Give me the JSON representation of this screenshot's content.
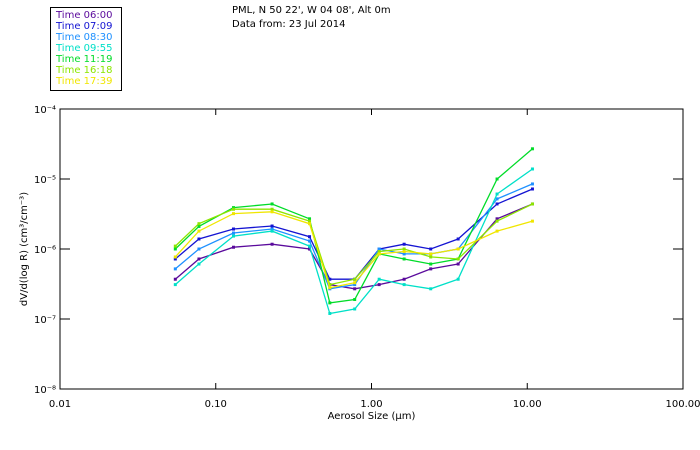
{
  "title": {
    "line1": "PML, N 50 22', W 04 08', Alt 0m",
    "line2": "Data from: 23 Jul 2014"
  },
  "legend": [
    {
      "label": "Time 06:00",
      "color": "#5a0a9c"
    },
    {
      "label": "Time 07:09",
      "color": "#1414d2"
    },
    {
      "label": "Time 08:30",
      "color": "#1e90ff"
    },
    {
      "label": "Time 09:55",
      "color": "#00e0c8"
    },
    {
      "label": "Time 11:19",
      "color": "#00dc28"
    },
    {
      "label": "Time 16:18",
      "color": "#8ce600"
    },
    {
      "label": "Time 17:39",
      "color": "#f0e600"
    }
  ],
  "chart_data": {
    "type": "line",
    "xscale": "log",
    "yscale": "log",
    "xlim": [
      0.01,
      100
    ],
    "ylim": [
      1e-08,
      0.0001
    ],
    "xlabel": "Aerosol Size (µm)",
    "ylabel": "dV/d(log R) (cm³/cm⁻³)",
    "xticks": [
      "0.01",
      "0.10",
      "1.00",
      "10.00",
      "100.00"
    ],
    "yticks": [
      "10⁻⁴",
      "10⁻⁵",
      "10⁻⁶",
      "10⁻⁷",
      "10⁻⁸"
    ],
    "x": [
      0.055,
      0.078,
      0.13,
      0.23,
      0.4,
      0.54,
      0.78,
      1.12,
      1.62,
      2.4,
      3.6,
      6.4,
      10.8
    ],
    "series": [
      {
        "name": "Time 06:00",
        "values": [
          3.7e-07,
          7.2e-07,
          1.06e-06,
          1.17e-06,
          1e-06,
          3.1e-07,
          2.7e-07,
          3.1e-07,
          3.7e-07,
          5.2e-07,
          6.1e-07,
          2.7e-06,
          4.4e-06
        ]
      },
      {
        "name": "Time 07:09",
        "values": [
          7.2e-07,
          1.39e-06,
          1.93e-06,
          2.13e-06,
          1.5e-06,
          3.7e-07,
          3.7e-07,
          1e-06,
          1.17e-06,
          1e-06,
          1.39e-06,
          4.4e-06,
          7.2e-06
        ]
      },
      {
        "name": "Time 08:30",
        "values": [
          5.2e-07,
          1e-06,
          1.69e-06,
          1.93e-06,
          1.3e-06,
          2.7e-07,
          3.1e-07,
          1e-06,
          8.5e-07,
          8.5e-07,
          1e-06,
          5.2e-06,
          8.5e-06
        ]
      },
      {
        "name": "Time 09:55",
        "values": [
          3.1e-07,
          6.1e-07,
          1.53e-06,
          1.8e-06,
          1.1e-06,
          1.2e-07,
          1.39e-07,
          3.7e-07,
          3.1e-07,
          2.7e-07,
          3.7e-07,
          6.1e-06,
          1.39e-05
        ]
      },
      {
        "name": "Time 11:19",
        "values": [
          1e-06,
          2.1e-06,
          3.9e-06,
          4.4e-06,
          2.7e-06,
          1.7e-07,
          1.9e-07,
          8.5e-07,
          7.2e-07,
          6.1e-07,
          7.2e-07,
          1e-05,
          2.7e-05
        ]
      },
      {
        "name": "Time 16:18",
        "values": [
          1.1e-06,
          2.3e-06,
          3.7e-06,
          3.7e-06,
          2.5e-06,
          3.1e-07,
          3.7e-07,
          9.2e-07,
          1e-06,
          7.7e-07,
          7.2e-07,
          2.5e-06,
          4.4e-06
        ]
      },
      {
        "name": "Time 17:39",
        "values": [
          7.7e-07,
          1.8e-06,
          3.2e-06,
          3.4e-06,
          2.3e-06,
          2.8e-07,
          3.3e-07,
          8.5e-07,
          9.2e-07,
          8.5e-07,
          1e-06,
          1.8e-06,
          2.5e-06
        ]
      }
    ]
  }
}
